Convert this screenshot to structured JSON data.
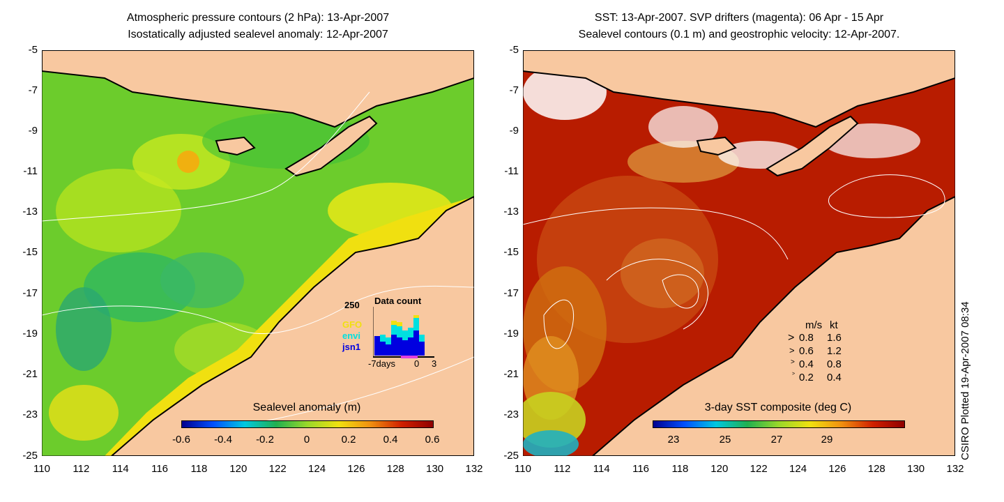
{
  "left_panel": {
    "title_line1": "Atmospheric pressure contours (2 hPa): 13-Apr-2007",
    "title_line2": "Isostatically adjusted sealevel anomaly: 12-Apr-2007",
    "colorbar_label": "Sealevel anomaly (m)",
    "colorbar_ticks": [
      "-0.6",
      "-0.4",
      "-0.2",
      "0",
      "0.2",
      "0.4",
      "0.6"
    ],
    "colorbar_colors": [
      "#00008f",
      "#0050ff",
      "#00c8e0",
      "#20b050",
      "#9ad82a",
      "#f0e010",
      "#f09010",
      "#d02000",
      "#8f0000"
    ]
  },
  "right_panel": {
    "title_line1": "SST: 13-Apr-2007. SVP drifters (magenta): 06 Apr - 15 Apr",
    "title_line2": "Sealevel contours (0.1 m) and geostrophic velocity: 12-Apr-2007.",
    "colorbar_label": "3-day SST composite (deg C)",
    "colorbar_ticks": [
      "23",
      "25",
      "27",
      "29"
    ],
    "colorbar_colors": [
      "#00008f",
      "#0050ff",
      "#00c8e0",
      "#20b050",
      "#9ad82a",
      "#f0e010",
      "#f09010",
      "#d02000",
      "#8f0000"
    ]
  },
  "axes": {
    "y_ticks": [
      "-5",
      "-7",
      "-9",
      "-11",
      "-13",
      "-15",
      "-17",
      "-19",
      "-21",
      "-23",
      "-25"
    ],
    "x_ticks": [
      "110",
      "112",
      "114",
      "116",
      "118",
      "120",
      "122",
      "124",
      "126",
      "128",
      "130",
      "132"
    ]
  },
  "data_count_inset": {
    "title": "Data count",
    "max_label": "250",
    "series": [
      {
        "name": "GFO",
        "color": "#f0e010"
      },
      {
        "name": "envi",
        "color": "#00e0e0"
      },
      {
        "name": "jsn1",
        "color": "#0000e0"
      }
    ],
    "x_labels": [
      "-7days",
      "0",
      "3"
    ]
  },
  "velocity_legend": {
    "header_ms": "m/s",
    "header_kt": "kt",
    "rows": [
      {
        "ms": "0.8",
        "kt": "1.6"
      },
      {
        "ms": "0.6",
        "kt": "1.2"
      },
      {
        "ms": "0.4",
        "kt": "0.8"
      },
      {
        "ms": "0.2",
        "kt": "0.4"
      }
    ]
  },
  "credit": "CSIRO Plotted 19-Apr-2007 08:34",
  "colors": {
    "land": "#f8c8a0",
    "ocean_sla": "#70d030",
    "ocean_sst": "#c02000"
  }
}
